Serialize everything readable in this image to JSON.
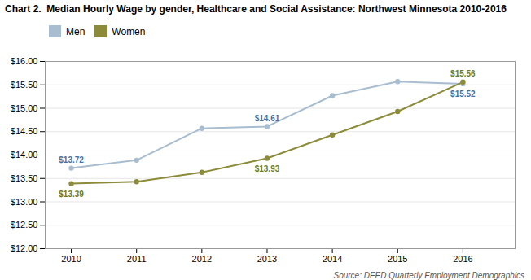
{
  "chart_data": {
    "type": "line",
    "title": "Chart 2.  Median Hourly Wage by gender, Healthcare and Social Assistance: Northwest Minnesota 2010-2016",
    "x": [
      2010,
      2011,
      2012,
      2013,
      2014,
      2015,
      2016
    ],
    "series": [
      {
        "name": "Men",
        "color": "#a8bdd0",
        "marker": "circle",
        "values": [
          13.72,
          13.89,
          14.57,
          14.61,
          15.27,
          15.57,
          15.52
        ]
      },
      {
        "name": "Women",
        "color": "#8b8b3a",
        "marker": "circle",
        "values": [
          13.39,
          13.43,
          13.63,
          13.93,
          14.43,
          14.93,
          15.56
        ]
      }
    ],
    "xlim": [
      2009.6,
      2016.8
    ],
    "xticks": [
      2010,
      2011,
      2012,
      2013,
      2014,
      2015,
      2016
    ],
    "ylim": [
      12.0,
      16.0
    ],
    "yticks": [
      {
        "value": 12.0,
        "label": "$12.00"
      },
      {
        "value": 12.5,
        "label": "$12.50"
      },
      {
        "value": 13.0,
        "label": "$13.00"
      },
      {
        "value": 13.5,
        "label": "$13.50"
      },
      {
        "value": 14.0,
        "label": "$14.00"
      },
      {
        "value": 14.5,
        "label": "$14.50"
      },
      {
        "value": 15.0,
        "label": "$15.00"
      },
      {
        "value": 15.5,
        "label": "$15.50"
      },
      {
        "value": 16.0,
        "label": "$16.00"
      }
    ],
    "grid": true,
    "legend": "top",
    "annotations": [
      {
        "text": "$13.72",
        "x": 2010,
        "y": 13.72,
        "series": "Men",
        "color": "#4472a8"
      },
      {
        "text": "$14.61",
        "x": 2013,
        "y": 14.61,
        "series": "Men",
        "color": "#4472a8"
      },
      {
        "text": "$15.52",
        "x": 2016,
        "y": 15.52,
        "series": "Men",
        "color": "#4472a8"
      },
      {
        "text": "$13.39",
        "x": 2010,
        "y": 13.39,
        "series": "Women",
        "color": "#6b7c2a"
      },
      {
        "text": "$13.93",
        "x": 2013,
        "y": 13.93,
        "series": "Women",
        "color": "#6b7c2a"
      },
      {
        "text": "$15.56",
        "x": 2016,
        "y": 15.56,
        "series": "Women",
        "color": "#6b7c2a"
      }
    ],
    "source": "Source: DEED Quarterly Employment Demographics"
  }
}
